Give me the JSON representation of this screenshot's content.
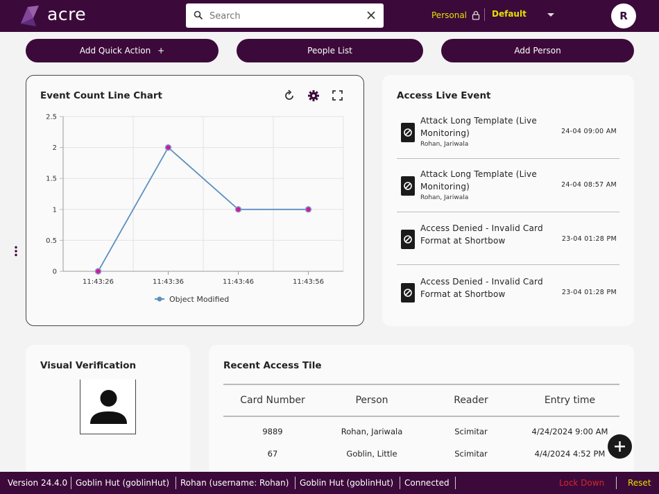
{
  "header": {
    "logo_text": "acre",
    "search": {
      "placeholder": "Search",
      "value": ""
    },
    "personal_label": "Personal",
    "default_label": "Default",
    "avatar_initial": "R"
  },
  "quick_actions": {
    "add_quick_action": "Add Quick Action",
    "plus": "+",
    "people_list": "People List",
    "add_person": "Add Person"
  },
  "event_chart": {
    "title": "Event Count Line Chart"
  },
  "chart_data": {
    "type": "line",
    "title": "",
    "xlabel": "",
    "ylabel": "",
    "x": [
      "11:43:26",
      "11:43:36",
      "11:43:46",
      "11:43:56"
    ],
    "series": [
      {
        "name": "Object Modified",
        "values": [
          0,
          2,
          1,
          1
        ],
        "color": "#5b8fc1",
        "marker_color": "#d3189a"
      }
    ],
    "ylim": [
      0,
      2.5
    ],
    "yticks": [
      "2.5",
      "2",
      "1.5",
      "1",
      "0.5",
      "0"
    ],
    "grid": true,
    "legend": "bottom"
  },
  "live_events": {
    "title": "Access Live Event",
    "items": [
      {
        "line1": "Attack Long Template (Live",
        "line2": "Monitoring)",
        "sub": "Rohan, Jariwala",
        "time": "24-04 09:00 AM"
      },
      {
        "line1": "Attack Long Template (Live",
        "line2": "Monitoring)",
        "sub": "Rohan, Jariwala",
        "time": "24-04 08:57 AM"
      },
      {
        "line1": "Access Denied - Invalid Card",
        "line2": "Format at Shortbow",
        "sub": "",
        "time": "23-04 01:28 PM"
      },
      {
        "line1": "Access Denied - Invalid Card",
        "line2": "Format at Shortbow",
        "sub": "",
        "time": "23-04 01:28 PM"
      }
    ]
  },
  "visual_verification": {
    "title": "Visual Verification"
  },
  "recent_access": {
    "title": "Recent Access Tile",
    "columns": [
      "Card Number",
      "Person",
      "Reader",
      "Entry time"
    ],
    "rows": [
      [
        "9889",
        "Rohan, Jariwala",
        "Scimitar",
        "4/24/2024 9:00 AM"
      ],
      [
        "67",
        "Goblin, Little",
        "Scimitar",
        "4/4/2024 4:52 PM"
      ]
    ]
  },
  "status_bar": {
    "version": "Version 24.4.0",
    "site": "Goblin Hut (goblinHut)",
    "user": "Rohan (username: Rohan)",
    "site2": "Goblin Hut (goblinHut)",
    "connection": "Connected",
    "lock_down": "Lock Down",
    "reset": "Reset"
  },
  "colors": {
    "brand": "#3c0a3a",
    "accent_yellow": "#e5e000",
    "danger": "#d9262c"
  }
}
